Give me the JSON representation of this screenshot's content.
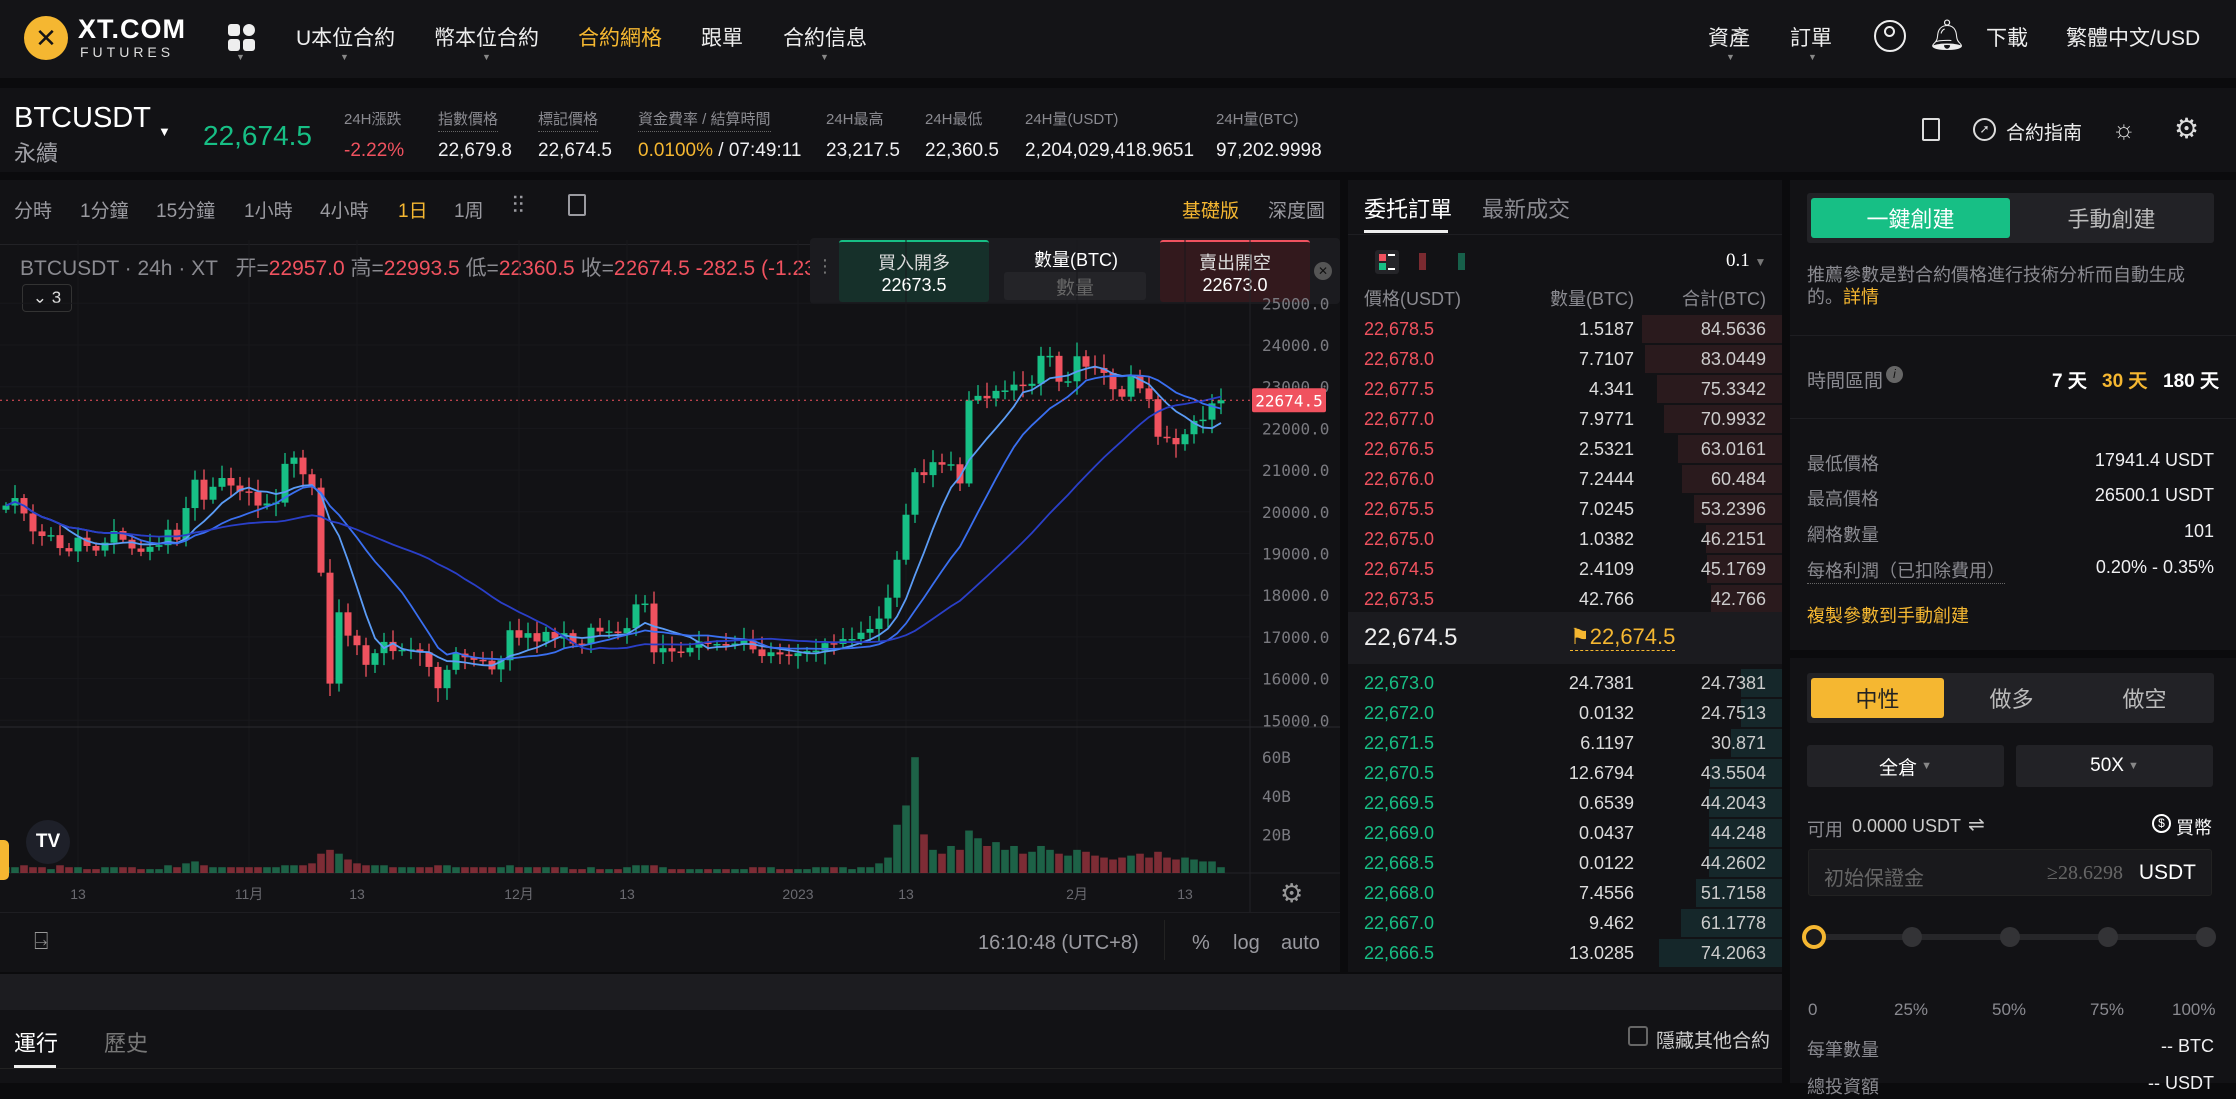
{
  "brand": {
    "logo": "XT.COM",
    "sub": "FUTURES"
  },
  "nav": {
    "items": [
      "U本位合約",
      "幣本位合約",
      "合約網格",
      "跟單",
      "合約信息"
    ],
    "active": 2,
    "right": [
      "資產",
      "訂單",
      "下載",
      "繁體中文/USD"
    ]
  },
  "ticker": {
    "symbol": "BTCUSDT",
    "type": "永續",
    "price": "22,674.5",
    "stats": [
      {
        "label": "24H漲跌",
        "value": "-2.22%",
        "color": "#f0525f"
      },
      {
        "label": "指數價格",
        "value": "22,679.8"
      },
      {
        "label": "標記價格",
        "value": "22,674.5"
      },
      {
        "label": "資金費率 / 結算時間",
        "value": "0.0100%",
        "value2": " / 07:49:11",
        "color": "#f5b731"
      },
      {
        "label": "24H最高",
        "value": "23,217.5"
      },
      {
        "label": "24H最低",
        "value": "22,360.5"
      },
      {
        "label": "24H量(USDT)",
        "value": "2,204,029,418.9651"
      },
      {
        "label": "24H量(BTC)",
        "value": "97,202.9998"
      }
    ],
    "guide": "合約指南"
  },
  "chart_toolbar": {
    "intervals": [
      "分時",
      "1分鐘",
      "15分鐘",
      "1小時",
      "4小時",
      "1日",
      "1周"
    ],
    "active": 5,
    "modes": [
      "基礎版",
      "深度圖"
    ],
    "active_mode": 0
  },
  "legend": {
    "title": "BTCUSDT · 24h · XT",
    "o_label": "开=",
    "o": "22957.0",
    "h_label": "高=",
    "h": "22993.5",
    "l_label": "低=",
    "l": "22360.5",
    "c_label": "收=",
    "c": "22674.5",
    "chg": "-282.5 (-1.23%",
    "indicators": "3"
  },
  "quick_trade": {
    "buy_label": "買入開多",
    "buy_price": "22673.5",
    "qty_label": "數量(BTC)",
    "qty_placeholder": "數量",
    "sell_label": "賣出開空",
    "sell_price": "22673.0"
  },
  "chart_data": {
    "type": "candlestick",
    "start_date": "2022-10-05",
    "closes": [
      20150,
      20330,
      19960,
      19530,
      19420,
      19440,
      19130,
      19050,
      19380,
      19180,
      19070,
      19260,
      19540,
      19330,
      19120,
      19040,
      19160,
      19200,
      19570,
      19330,
      20090,
      20770,
      20290,
      20600,
      20810,
      20630,
      20490,
      20480,
      20150,
      20200,
      20220,
      21150,
      21300,
      20900,
      20580,
      18540,
      15880,
      17590,
      17030,
      16800,
      16330,
      16610,
      16880,
      16660,
      16690,
      16700,
      16630,
      16280,
      15770,
      16210,
      16600,
      16510,
      16450,
      16430,
      16220,
      16440,
      17160,
      16980,
      17090,
      16890,
      17120,
      16960,
      17090,
      16840,
      16830,
      17220,
      17130,
      17130,
      17090,
      17210,
      17780,
      17800,
      16630,
      16730,
      16650,
      16630,
      16740,
      16890,
      16830,
      16830,
      16790,
      16840,
      16910,
      16700,
      16540,
      16630,
      16580,
      16540,
      16610,
      16660,
      16670,
      16850,
      16830,
      16950,
      16950,
      17100,
      17190,
      17440,
      17940,
      18850,
      19930,
      20950,
      20880,
      21190,
      21130,
      21140,
      20680,
      22670,
      22780,
      22720,
      22900,
      22910,
      23050,
      23020,
      23070,
      23740,
      23740,
      23120,
      23130,
      23730,
      23480,
      23450,
      23330,
      22940,
      22760,
      23250,
      22960,
      22700,
      21800,
      21770,
      21620,
      21860,
      22180,
      22210,
      22600,
      22674.5
    ],
    "volumes_B": [
      3,
      3,
      4,
      3,
      3,
      2,
      4,
      3,
      3,
      2,
      2,
      3,
      3,
      3,
      3,
      2,
      2,
      2,
      4,
      3,
      5,
      6,
      4,
      3,
      3,
      3,
      3,
      3,
      3,
      3,
      3,
      4,
      4,
      4,
      5,
      10,
      12,
      10,
      7,
      5,
      4,
      4,
      4,
      3,
      3,
      3,
      3,
      3,
      4,
      4,
      3,
      3,
      3,
      3,
      3,
      3,
      4,
      3,
      3,
      3,
      3,
      3,
      3,
      2,
      2,
      3,
      2,
      2,
      2,
      3,
      4,
      4,
      4,
      3,
      2,
      2,
      2,
      2,
      2,
      2,
      2,
      2,
      2,
      3,
      3,
      3,
      2,
      2,
      2,
      2,
      3,
      3,
      3,
      3,
      2,
      3,
      3,
      5,
      8,
      25,
      35,
      60,
      20,
      12,
      10,
      14,
      12,
      22,
      18,
      14,
      16,
      12,
      14,
      10,
      11,
      14,
      12,
      10,
      9,
      12,
      11,
      9,
      8,
      7,
      8,
      9,
      10,
      8,
      11,
      8,
      7,
      8,
      7,
      6,
      6,
      3
    ],
    "ma_periods": [
      7,
      14,
      30
    ],
    "ma_colors": [
      "#5b9cf6",
      "#3a6ff0",
      "#2a3fc8"
    ],
    "up_color": "#17bf85",
    "down_color": "#f0525f",
    "price_ticks": [
      "25000.0",
      "24000.0",
      "23000.0",
      "22000.0",
      "21000.0",
      "20000.0",
      "19000.0",
      "18000.0",
      "17000.0",
      "16000.0",
      "15000.0"
    ],
    "price_range": [
      15000,
      25000
    ],
    "volume_ticks": [
      "60B",
      "40B",
      "20B"
    ],
    "x_ticks": [
      {
        "label": "13",
        "date": "2022-10-13"
      },
      {
        "label": "11月",
        "date": "2022-11-01"
      },
      {
        "label": "13",
        "date": "2022-11-13"
      },
      {
        "label": "12月",
        "date": "2022-12-01"
      },
      {
        "label": "13",
        "date": "2022-12-13"
      },
      {
        "label": "2023",
        "date": "2023-01-01"
      },
      {
        "label": "13",
        "date": "2023-01-13"
      },
      {
        "label": "2月",
        "date": "2023-02-01"
      },
      {
        "label": "13",
        "date": "2023-02-13"
      }
    ],
    "last_price": "22674.5"
  },
  "chart_footer": {
    "time": "16:10:48 (UTC+8)",
    "pct": "%",
    "log": "log",
    "auto": "auto"
  },
  "orderbook": {
    "tabs": [
      "委托訂單",
      "最新成交"
    ],
    "precision": "0.1",
    "headers": [
      "價格(USDT)",
      "數量(BTC)",
      "合計(BTC)"
    ],
    "asks": [
      [
        "22,678.5",
        "1.5187",
        "84.5636"
      ],
      [
        "22,678.0",
        "7.7107",
        "83.0449"
      ],
      [
        "22,677.5",
        "4.341",
        "75.3342"
      ],
      [
        "22,677.0",
        "7.9771",
        "70.9932"
      ],
      [
        "22,676.5",
        "2.5321",
        "63.0161"
      ],
      [
        "22,676.0",
        "7.2444",
        "60.484"
      ],
      [
        "22,675.5",
        "7.0245",
        "53.2396"
      ],
      [
        "22,675.0",
        "1.0382",
        "46.2151"
      ],
      [
        "22,674.5",
        "2.4109",
        "45.1769"
      ],
      [
        "22,673.5",
        "42.766",
        "42.766"
      ]
    ],
    "mid_price": "22,674.5",
    "mark_price": "22,674.5",
    "bids": [
      [
        "22,673.0",
        "24.7381",
        "24.7381"
      ],
      [
        "22,672.0",
        "0.0132",
        "24.7513"
      ],
      [
        "22,671.5",
        "6.1197",
        "30.871"
      ],
      [
        "22,670.5",
        "12.6794",
        "43.5504"
      ],
      [
        "22,669.5",
        "0.6539",
        "44.2043"
      ],
      [
        "22,669.0",
        "0.0437",
        "44.248"
      ],
      [
        "22,668.5",
        "0.0122",
        "44.2602"
      ],
      [
        "22,668.0",
        "7.4556",
        "51.7158"
      ],
      [
        "22,667.0",
        "9.462",
        "61.1778"
      ],
      [
        "22,666.5",
        "13.0285",
        "74.2063"
      ]
    ]
  },
  "grid": {
    "tabs": [
      "一鍵創建",
      "手動創建"
    ],
    "desc": "推薦參數是對合約價格進行技術分析而自動生成的。",
    "detail": "詳情",
    "period_label": "時間區間",
    "periods": [
      "7 天",
      "30 天",
      "180 天"
    ],
    "period_active": 1,
    "params": [
      [
        "最低價格",
        "17941.4 USDT"
      ],
      [
        "最高價格",
        "26500.1 USDT"
      ],
      [
        "網格數量",
        "101"
      ],
      [
        "每格利潤（已扣除費用）",
        "0.20% - 0.35%"
      ]
    ],
    "copy": "複製參數到手動創建",
    "directions": [
      "中性",
      "做多",
      "做空"
    ],
    "direction_active": 0,
    "margin_mode": "全倉",
    "leverage": "50X",
    "available_label": "可用",
    "available": "0.0000 USDT",
    "buy_coin": "買幣",
    "margin_placeholder": "初始保證金",
    "margin_hint": "≥28.6298",
    "margin_unit": "USDT",
    "slider_marks": [
      "0",
      "25%",
      "50%",
      "75%",
      "100%"
    ],
    "slider_value": 0,
    "qty_label": "每筆數量",
    "qty": "-- BTC",
    "total_label": "總投資額",
    "total": "-- USDT"
  },
  "bottom": {
    "tabs": [
      "運行",
      "歷史"
    ],
    "hide_label": "隱藏其他合約"
  }
}
